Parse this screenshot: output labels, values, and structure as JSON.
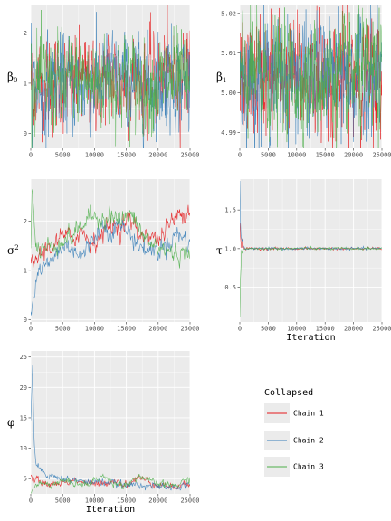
{
  "colors": {
    "chain1": "#E41A1C",
    "chain2": "#377EB8",
    "chain3": "#4DAF4A",
    "panel_bg": "#EBEBEB",
    "grid": "#FFFFFF"
  },
  "chart_data": [
    {
      "id": "beta0",
      "type": "line",
      "title": "",
      "xlabel": "",
      "ylabel": "β0",
      "xlim": [
        0,
        25000
      ],
      "ylim": [
        -0.3,
        2.55
      ],
      "xticks": [
        0,
        5000,
        10000,
        15000,
        20000,
        25000
      ],
      "xtick_labels": [
        "0",
        "5000",
        "10000",
        "15000",
        "20000",
        "25000"
      ],
      "yticks": [
        0,
        1,
        2
      ],
      "ytick_labels": [
        "0",
        "1",
        "2"
      ],
      "grid": true,
      "series": [
        {
          "name": "Chain 1",
          "x": [
            0,
            2500,
            5000,
            7500,
            10000,
            12500,
            15000,
            17500,
            20000,
            22500,
            25000
          ],
          "y": [
            1.0,
            1.0,
            0.95,
            1.0,
            1.05,
            1.1,
            1.0,
            1.0,
            1.05,
            1.2,
            1.3
          ]
        },
        {
          "name": "Chain 2",
          "x": [
            0,
            2500,
            5000,
            7500,
            10000,
            12500,
            15000,
            17500,
            20000,
            22500,
            25000
          ],
          "y": [
            1.0,
            0.95,
            1.0,
            0.95,
            1.0,
            1.1,
            1.05,
            0.95,
            1.0,
            1.05,
            1.0
          ]
        },
        {
          "name": "Chain 3",
          "x": [
            0,
            2500,
            5000,
            7500,
            10000,
            12500,
            15000,
            17500,
            20000,
            22500,
            25000
          ],
          "y": [
            1.05,
            1.0,
            1.0,
            1.05,
            1.0,
            1.1,
            1.05,
            1.0,
            1.0,
            1.05,
            1.0
          ]
        }
      ]
    },
    {
      "id": "beta1",
      "type": "line",
      "title": "",
      "xlabel": "",
      "ylabel": "β1",
      "xlim": [
        0,
        25000
      ],
      "ylim": [
        4.986,
        5.022
      ],
      "xticks": [
        0,
        5000,
        10000,
        15000,
        20000,
        25000
      ],
      "xtick_labels": [
        "0",
        "5000",
        "10000",
        "15000",
        "20000",
        "25000"
      ],
      "yticks": [
        4.99,
        5.0,
        5.01,
        5.02
      ],
      "ytick_labels": [
        "4.99",
        "5.00",
        "5.01",
        "5.02"
      ],
      "grid": true,
      "series": [
        {
          "name": "Chain 1",
          "x": [
            0,
            5000,
            10000,
            15000,
            20000,
            25000
          ],
          "y": [
            5.004,
            5.004,
            5.004,
            5.004,
            5.004,
            5.004
          ]
        },
        {
          "name": "Chain 2",
          "x": [
            0,
            5000,
            10000,
            15000,
            20000,
            25000
          ],
          "y": [
            5.004,
            5.004,
            5.004,
            5.004,
            5.004,
            5.004
          ]
        },
        {
          "name": "Chain 3",
          "x": [
            0,
            5000,
            10000,
            15000,
            20000,
            25000
          ],
          "y": [
            5.004,
            5.004,
            5.004,
            5.004,
            5.004,
            5.004
          ]
        }
      ]
    },
    {
      "id": "sigma2",
      "type": "line",
      "title": "",
      "xlabel": "",
      "ylabel": "σ2",
      "xlim": [
        0,
        25000
      ],
      "ylim": [
        -0.05,
        2.85
      ],
      "xticks": [
        0,
        5000,
        10000,
        15000,
        20000,
        25000
      ],
      "xtick_labels": [
        "0",
        "5000",
        "10000",
        "15000",
        "20000",
        "25000"
      ],
      "yticks": [
        0,
        1,
        2
      ],
      "ytick_labels": [
        "0",
        "1",
        "2"
      ],
      "grid": true,
      "series": [
        {
          "name": "Chain 1",
          "x": [
            0,
            1000,
            2500,
            4000,
            5000,
            6500,
            8000,
            9500,
            11000,
            12500,
            14000,
            15500,
            17000,
            18500,
            20000,
            21500,
            23000,
            24000,
            25000
          ],
          "y": [
            1.1,
            1.25,
            1.45,
            1.55,
            1.7,
            1.65,
            1.8,
            1.55,
            1.7,
            1.95,
            1.85,
            2.05,
            1.7,
            1.75,
            1.6,
            1.9,
            2.1,
            2.2,
            2.25
          ]
        },
        {
          "name": "Chain 2",
          "x": [
            0,
            500,
            1000,
            2000,
            3000,
            4000,
            5000,
            6500,
            8000,
            9500,
            11000,
            12500,
            14000,
            15500,
            17000,
            18500,
            20000,
            21500,
            23000,
            24500,
            25000
          ],
          "y": [
            0.1,
            0.5,
            0.95,
            1.05,
            1.15,
            1.35,
            1.45,
            1.5,
            1.25,
            1.6,
            1.9,
            1.8,
            1.95,
            1.75,
            1.5,
            1.4,
            1.4,
            1.55,
            1.75,
            1.6,
            1.55
          ]
        },
        {
          "name": "Chain 3",
          "x": [
            0,
            200,
            800,
            2000,
            3500,
            5000,
            6500,
            8000,
            9500,
            11000,
            12500,
            14000,
            15500,
            17000,
            18500,
            20000,
            21500,
            23000,
            24500,
            25000
          ],
          "y": [
            1.5,
            2.7,
            1.45,
            1.45,
            1.5,
            1.6,
            1.7,
            1.9,
            2.1,
            2.05,
            2.15,
            2.0,
            2.15,
            1.85,
            1.55,
            1.45,
            1.4,
            1.35,
            1.3,
            1.45
          ]
        }
      ]
    },
    {
      "id": "tau",
      "type": "line",
      "title": "",
      "xlabel": "Iteration",
      "ylabel": "τ",
      "xlim": [
        0,
        25000
      ],
      "ylim": [
        0.05,
        1.9
      ],
      "xticks": [
        0,
        5000,
        10000,
        15000,
        20000,
        25000
      ],
      "xtick_labels": [
        "0",
        "5000",
        "10000",
        "15000",
        "20000",
        "25000"
      ],
      "yticks": [
        0.5,
        1.0,
        1.5
      ],
      "ytick_labels": [
        "0.5",
        "1.0",
        "1.5"
      ],
      "grid": true,
      "series": [
        {
          "name": "Chain 1",
          "x": [
            0,
            100,
            300,
            800,
            2000,
            5000,
            10000,
            15000,
            20000,
            25000
          ],
          "y": [
            1.4,
            1.2,
            1.05,
            1.0,
            1.0,
            1.0,
            1.0,
            1.0,
            1.0,
            1.0
          ]
        },
        {
          "name": "Chain 2",
          "x": [
            0,
            100,
            300,
            800,
            2000,
            5000,
            10000,
            15000,
            20000,
            25000
          ],
          "y": [
            1.85,
            1.3,
            1.05,
            1.0,
            1.0,
            1.0,
            1.0,
            1.0,
            1.0,
            1.0
          ]
        },
        {
          "name": "Chain 3",
          "x": [
            0,
            100,
            300,
            800,
            2000,
            5000,
            10000,
            15000,
            20000,
            25000
          ],
          "y": [
            0.15,
            0.7,
            0.95,
            1.0,
            1.0,
            1.0,
            1.0,
            1.0,
            1.0,
            1.0
          ]
        }
      ]
    },
    {
      "id": "phi",
      "type": "line",
      "title": "",
      "xlabel": "Iteration",
      "ylabel": "φ",
      "xlim": [
        0,
        25000
      ],
      "ylim": [
        2.5,
        26
      ],
      "xticks": [
        0,
        5000,
        10000,
        15000,
        20000,
        25000
      ],
      "xtick_labels": [
        "0",
        "5000",
        "10000",
        "15000",
        "20000",
        "25000"
      ],
      "yticks": [
        5,
        10,
        15,
        20,
        25
      ],
      "ytick_labels": [
        "5",
        "10",
        "15",
        "20",
        "25"
      ],
      "grid": true,
      "series": [
        {
          "name": "Chain 1",
          "x": [
            0,
            500,
            1500,
            3000,
            5000,
            7000,
            9000,
            11000,
            13000,
            15000,
            17000,
            19000,
            21000,
            23000,
            25000
          ],
          "y": [
            5.5,
            5.0,
            4.5,
            4.0,
            4.3,
            4.8,
            4.2,
            4.0,
            4.8,
            4.0,
            5.2,
            4.3,
            3.9,
            3.6,
            4.2
          ]
        },
        {
          "name": "Chain 2",
          "x": [
            0,
            300,
            500,
            800,
            1500,
            3000,
            5000,
            7000,
            9000,
            11000,
            13000,
            15000,
            17000,
            19000,
            21000,
            23000,
            25000
          ],
          "y": [
            15.0,
            24.5,
            12.0,
            7.5,
            6.5,
            5.5,
            5.0,
            4.7,
            4.4,
            4.5,
            4.2,
            3.9,
            4.1,
            3.8,
            3.5,
            3.6,
            4.0
          ]
        },
        {
          "name": "Chain 3",
          "x": [
            0,
            500,
            1500,
            3000,
            5000,
            7000,
            9000,
            11000,
            13000,
            15000,
            17000,
            19000,
            21000,
            23000,
            25000
          ],
          "y": [
            3.0,
            3.6,
            4.2,
            4.0,
            4.6,
            4.3,
            4.0,
            5.5,
            4.3,
            4.0,
            5.5,
            4.4,
            4.0,
            3.9,
            5.0
          ]
        }
      ]
    }
  ],
  "legend": {
    "title": "Collapsed",
    "entries": [
      "Chain 1",
      "Chain 2",
      "Chain 3"
    ],
    "placement": "right"
  }
}
